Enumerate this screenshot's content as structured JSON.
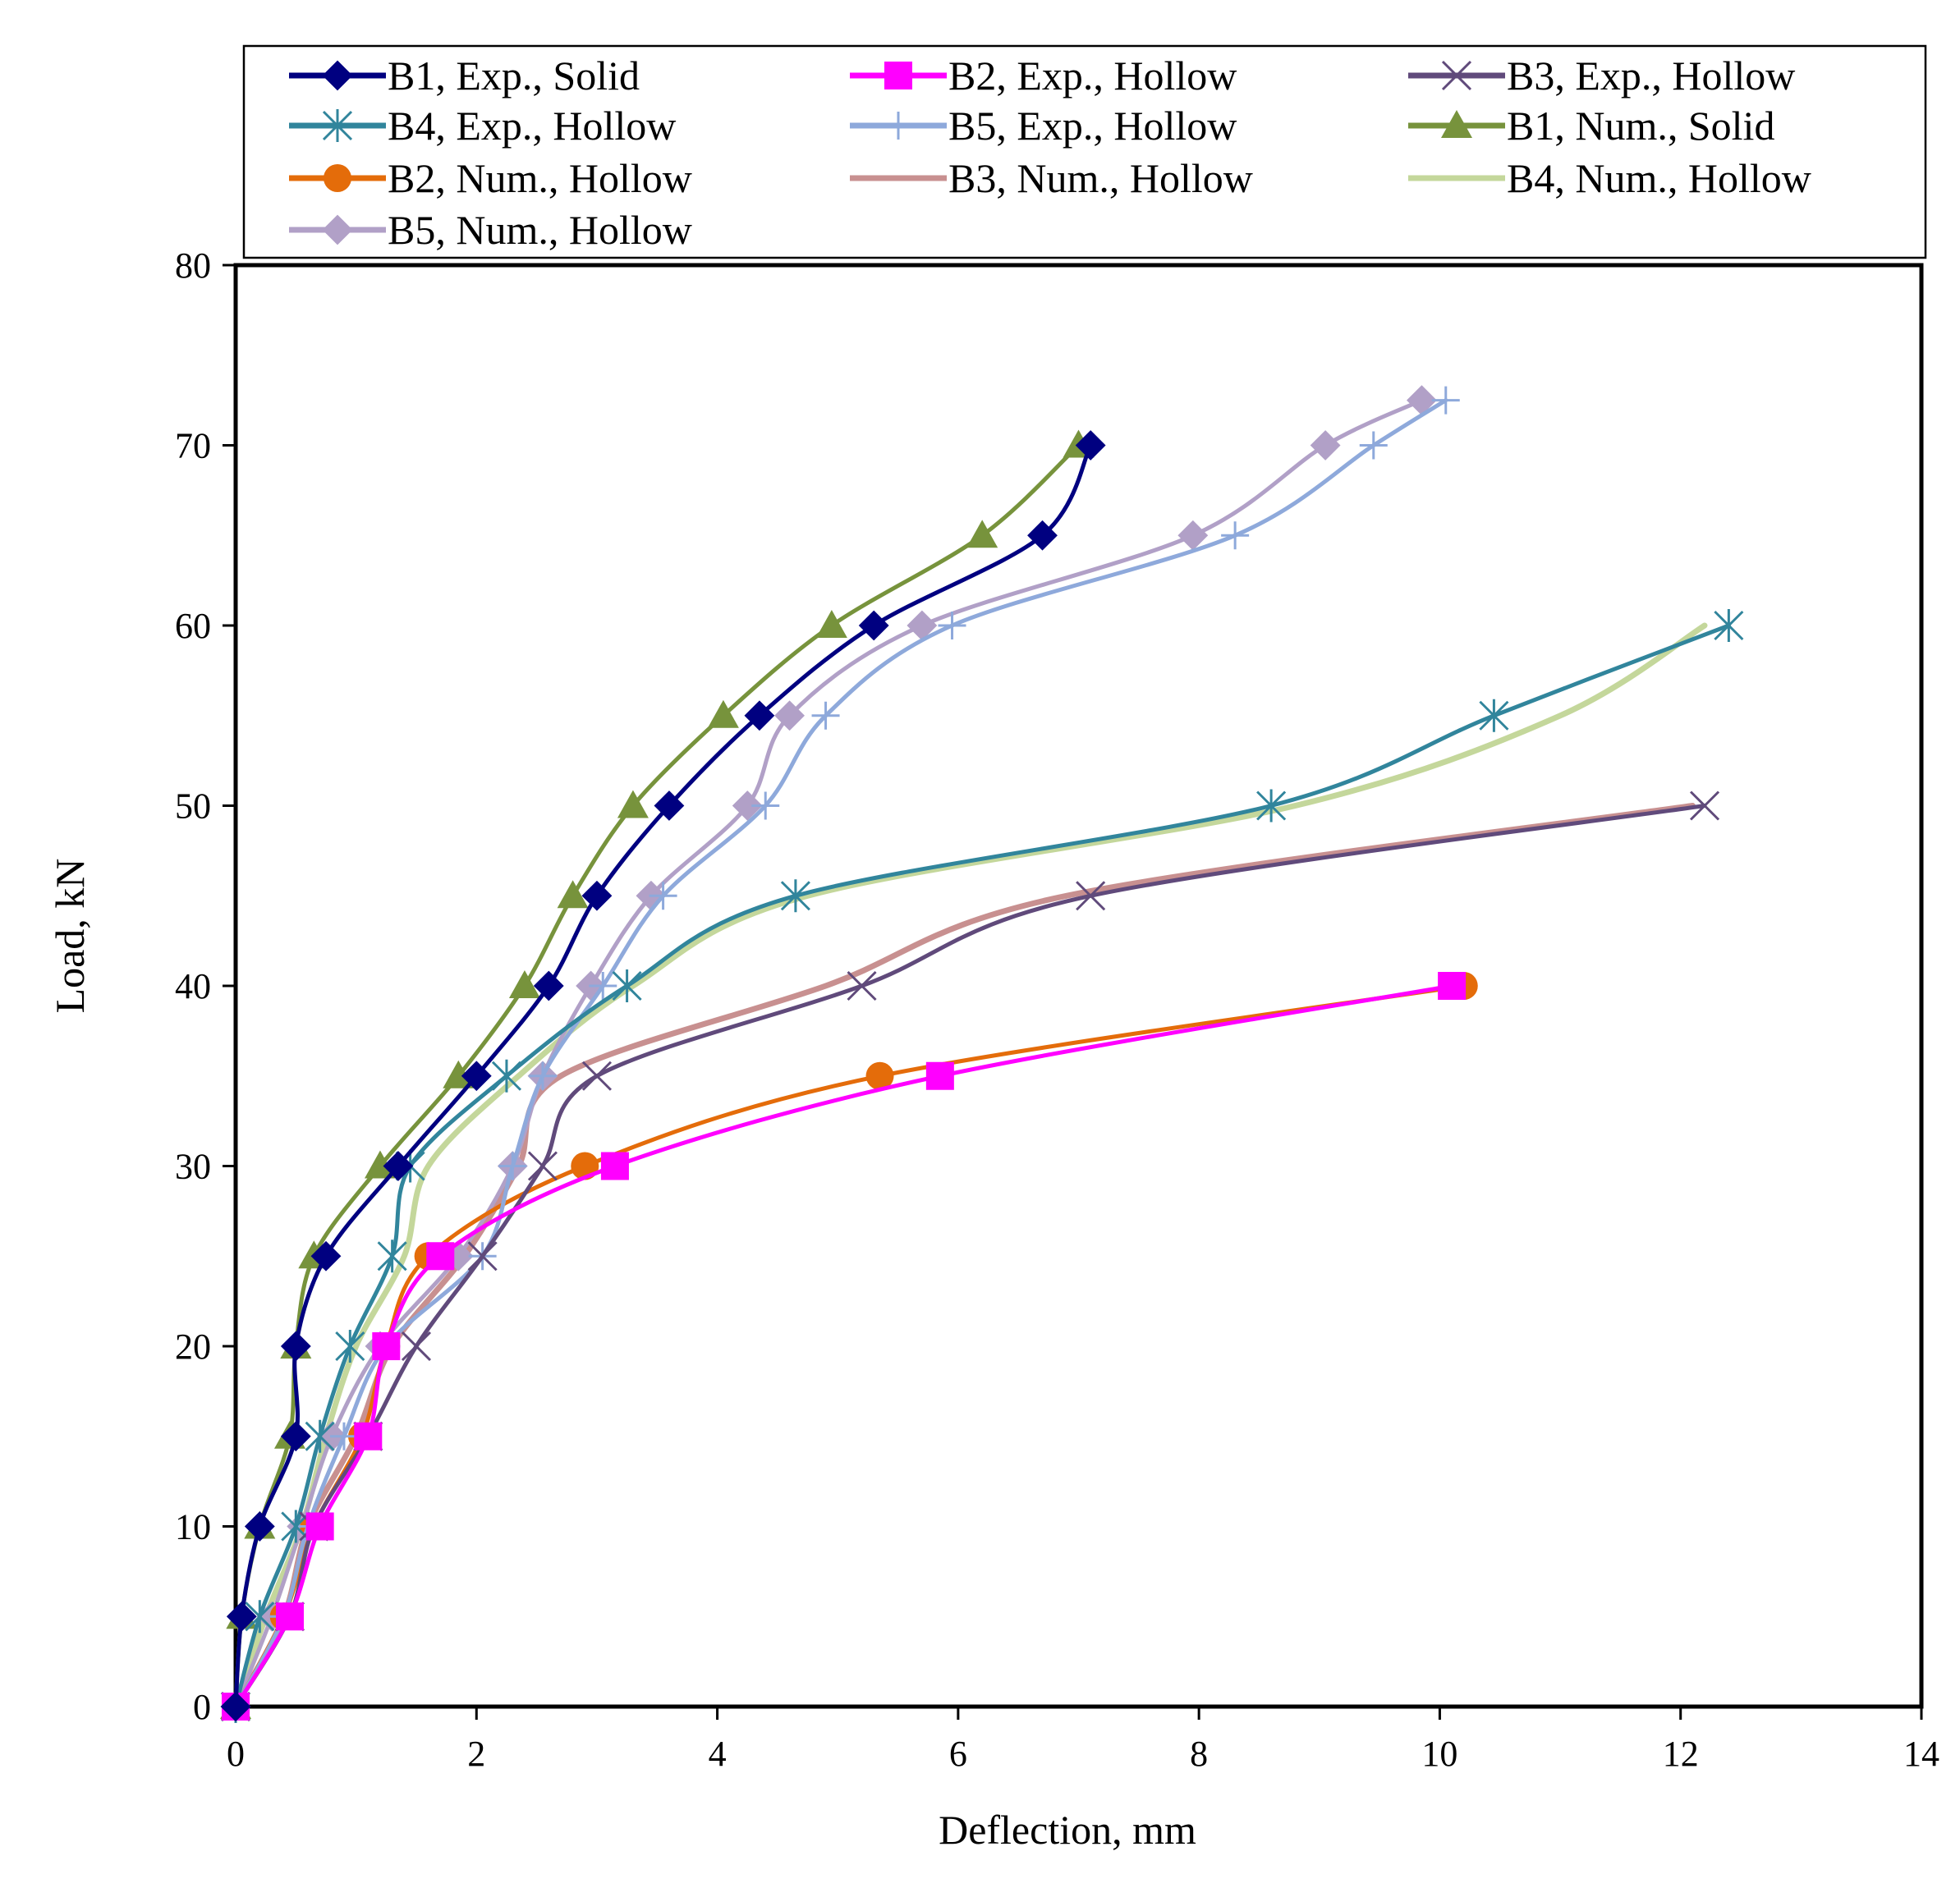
{
  "chart_data": {
    "type": "line",
    "title": "",
    "xlabel": "Deflection, mm",
    "ylabel": "Load, kN",
    "xlim": [
      0,
      14
    ],
    "ylim": [
      0,
      80
    ],
    "xticks": [
      0,
      2,
      4,
      6,
      8,
      10,
      12,
      14
    ],
    "yticks": [
      0,
      10,
      20,
      30,
      40,
      50,
      60,
      70,
      80
    ],
    "x_tick_labels": [
      "0",
      "2",
      "4",
      "6",
      "8",
      "10",
      "12",
      "14"
    ],
    "y_tick_labels": [
      "0",
      "10",
      "20",
      "30",
      "40",
      "50",
      "60",
      "70",
      "80"
    ],
    "grid": false,
    "legend_position": "top",
    "series": [
      {
        "name": "B1, Exp., Solid",
        "color": "#000080",
        "marker": "diamond",
        "x": [
          0,
          0.05,
          0.2,
          0.5,
          0.5,
          0.75,
          1.35,
          2.0,
          2.6,
          3.0,
          3.6,
          4.35,
          5.3,
          6.7,
          7.1
        ],
        "y": [
          0,
          5,
          10,
          15,
          20,
          25,
          30,
          35,
          40,
          45,
          50,
          55,
          60,
          65,
          70
        ]
      },
      {
        "name": "B2, Exp., Hollow",
        "color": "#FF00FF",
        "marker": "square",
        "x": [
          0,
          0.45,
          0.7,
          1.1,
          1.25,
          1.7,
          3.15,
          5.85,
          10.1
        ],
        "y": [
          0,
          5,
          10,
          15,
          20,
          25,
          30,
          35,
          40
        ]
      },
      {
        "name": "B3, Exp., Hollow",
        "color": "#604A7B",
        "marker": "x",
        "x": [
          0,
          0.45,
          0.65,
          1.1,
          1.5,
          2.05,
          2.55,
          3.0,
          5.2,
          7.1,
          12.2
        ],
        "y": [
          0,
          5,
          10,
          15,
          20,
          25,
          30,
          35,
          40,
          45,
          50
        ]
      },
      {
        "name": "B4, Exp., Hollow",
        "color": "#31859C",
        "marker": "asterisk",
        "x": [
          0,
          0.2,
          0.5,
          0.7,
          0.95,
          1.3,
          1.45,
          2.25,
          3.25,
          4.65,
          8.6,
          10.45,
          12.4
        ],
        "y": [
          0,
          5,
          10,
          15,
          20,
          25,
          30,
          35,
          40,
          45,
          50,
          55,
          60
        ]
      },
      {
        "name": "B5, Exp., Hollow",
        "color": "#8EA9DB",
        "marker": "plus",
        "x": [
          0,
          0.4,
          0.6,
          0.9,
          1.25,
          2.05,
          2.3,
          2.55,
          3.05,
          3.55,
          4.4,
          4.9,
          5.95,
          8.3,
          9.45,
          10.05
        ],
        "y": [
          0,
          5,
          10,
          15,
          20,
          25,
          30,
          35,
          40,
          45,
          50,
          55,
          60,
          65,
          70,
          72.5
        ]
      },
      {
        "name": "B1, Num., Solid",
        "color": "#77933C",
        "marker": "triangle",
        "x": [
          0,
          0.05,
          0.2,
          0.45,
          0.5,
          0.65,
          1.2,
          1.85,
          2.4,
          2.8,
          3.3,
          4.05,
          4.95,
          6.2,
          7.0
        ],
        "y": [
          0,
          5,
          10,
          15,
          20,
          25,
          30,
          35,
          40,
          45,
          50,
          55,
          60,
          65,
          70
        ]
      },
      {
        "name": "B2, Num., Hollow",
        "color": "#E46C0A",
        "marker": "circle",
        "x": [
          0,
          0.4,
          0.65,
          1.05,
          1.25,
          1.6,
          2.9,
          5.35,
          10.2
        ],
        "y": [
          0,
          5,
          10,
          15,
          20,
          25,
          30,
          35,
          40
        ]
      },
      {
        "name": "B3, Num., Hollow",
        "color": "#C89090",
        "marker": "none",
        "x": [
          0,
          0.4,
          0.6,
          1.0,
          1.3,
          1.9,
          2.35,
          2.7,
          4.9,
          6.9,
          12.1
        ],
        "y": [
          0,
          5,
          10,
          15,
          20,
          25,
          30,
          35,
          40,
          45,
          50
        ]
      },
      {
        "name": "B4, Num., Hollow",
        "color": "#C4D79B",
        "marker": "none",
        "x": [
          0,
          0.25,
          0.55,
          0.75,
          1.0,
          1.4,
          1.6,
          2.35,
          3.3,
          4.75,
          8.8,
          11.0,
          12.2
        ],
        "y": [
          0,
          5,
          10,
          15,
          20,
          25,
          30,
          35,
          40,
          45,
          50,
          55,
          60
        ]
      },
      {
        "name": "B5, Num., Hollow",
        "color": "#B1A0C7",
        "marker": "diamond",
        "x": [
          0,
          0.3,
          0.55,
          0.8,
          1.2,
          1.85,
          2.3,
          2.55,
          2.95,
          3.45,
          4.25,
          4.6,
          5.7,
          7.95,
          9.05,
          9.85
        ],
        "y": [
          0,
          5,
          10,
          15,
          20,
          25,
          30,
          35,
          40,
          45,
          50,
          55,
          60,
          65,
          70,
          72.5
        ]
      }
    ]
  }
}
